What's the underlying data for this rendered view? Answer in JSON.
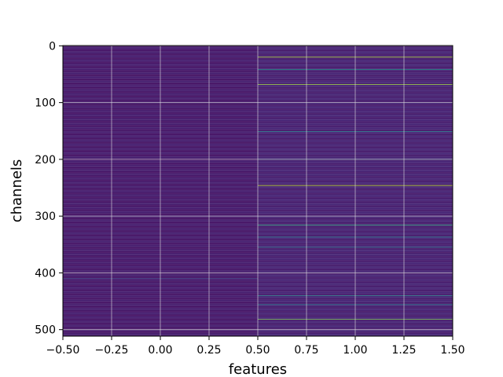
{
  "chart_data": {
    "type": "heatmap",
    "title": "",
    "xlabel": "features",
    "ylabel": "channels",
    "xlim": [
      -0.5,
      1.5
    ],
    "ylim": [
      511.5,
      -0.5
    ],
    "y_axis_inverted": true,
    "grid": true,
    "grid_color": "#e0e0e0",
    "colormap": "viridis",
    "vmin": 0,
    "vmax": 1,
    "x_ticks": [
      -0.5,
      -0.25,
      0.0,
      0.25,
      0.5,
      0.75,
      1.0,
      1.25,
      1.5
    ],
    "x_tick_labels": [
      "−0.50",
      "−0.25",
      "0.00",
      "0.25",
      "0.50",
      "0.75",
      "1.00",
      "1.25",
      "1.50"
    ],
    "y_ticks": [
      0,
      100,
      200,
      300,
      400,
      500
    ],
    "y_tick_labels": [
      "0",
      "100",
      "200",
      "300",
      "400",
      "500"
    ],
    "columns": [
      0,
      1
    ],
    "rows": 512,
    "base_values": [
      0.04,
      0.06
    ],
    "highlights": [
      {
        "column": 1,
        "row": 20,
        "value": 0.9
      },
      {
        "column": 1,
        "row": 42,
        "value": 0.55
      },
      {
        "column": 1,
        "row": 68,
        "value": 0.85
      },
      {
        "column": 1,
        "row": 151,
        "value": 0.45
      },
      {
        "column": 1,
        "row": 200,
        "value": 0.4
      },
      {
        "column": 1,
        "row": 246,
        "value": 0.9
      },
      {
        "column": 1,
        "row": 316,
        "value": 0.65
      },
      {
        "column": 1,
        "row": 337,
        "value": 0.45
      },
      {
        "column": 1,
        "row": 355,
        "value": 0.4
      },
      {
        "column": 1,
        "row": 440,
        "value": 0.5
      },
      {
        "column": 1,
        "row": 456,
        "value": 0.45
      },
      {
        "column": 1,
        "row": 482,
        "value": 0.8
      },
      {
        "column": 0,
        "row": 410,
        "value": 0.2
      }
    ]
  }
}
